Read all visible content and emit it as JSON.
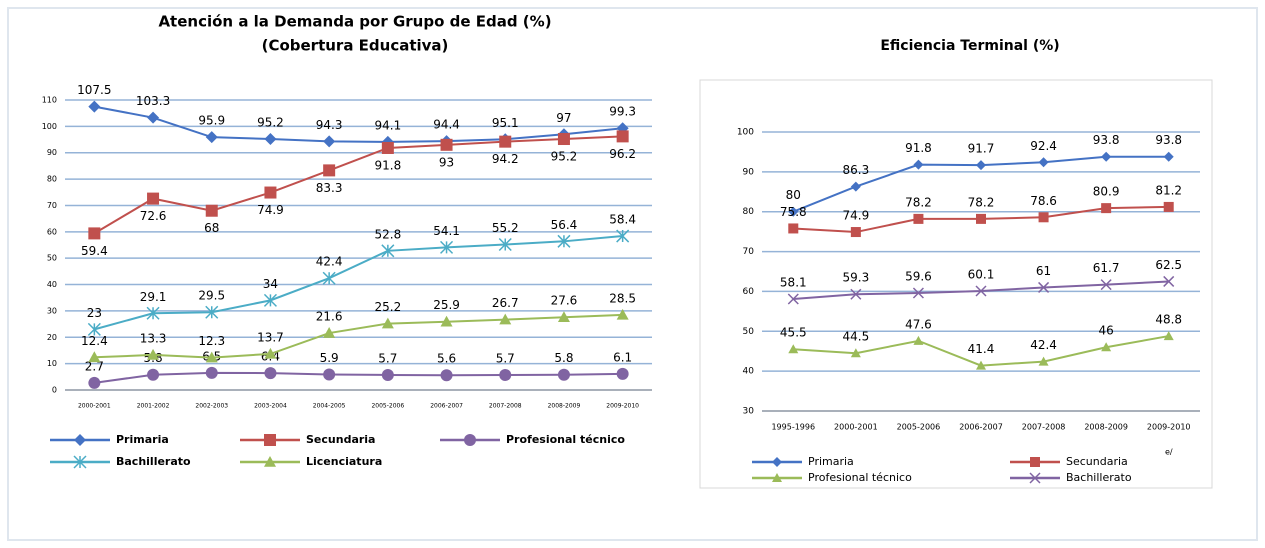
{
  "chart_data": [
    {
      "type": "line",
      "title": "Atención a la Demanda por Grupo de Edad (%)",
      "subtitle": "(Cobertura Educativa)",
      "categories": [
        "2000-2001",
        "2001-2002",
        "2002-2003",
        "2003-2004",
        "2004-2005",
        "2005-2006",
        "2006-2007",
        "2007-2008",
        "2008-2009",
        "2009-2010"
      ],
      "ylim": [
        0,
        110
      ],
      "yticks": [
        0,
        10,
        20,
        30,
        40,
        50,
        60,
        70,
        80,
        90,
        100,
        110
      ],
      "grid": true,
      "series": [
        {
          "name": "Primaria",
          "color": "#4472c4",
          "marker": "diamond",
          "values": [
            107.5,
            103.3,
            95.9,
            95.2,
            94.3,
            94.1,
            94.4,
            95.1,
            97,
            99.3
          ]
        },
        {
          "name": "Secundaria",
          "color": "#c0504d",
          "marker": "square",
          "values": [
            59.4,
            72.6,
            68,
            74.9,
            83.3,
            91.8,
            93,
            94.2,
            95.2,
            96.2
          ]
        },
        {
          "name": "Profesional técnico",
          "color": "#8064a2",
          "marker": "circle",
          "values": [
            2.7,
            5.8,
            6.5,
            6.4,
            5.9,
            5.7,
            5.6,
            5.7,
            5.8,
            6.1
          ]
        },
        {
          "name": "Bachillerato",
          "color": "#4bacc6",
          "marker": "star",
          "values": [
            23,
            29.1,
            29.5,
            34,
            42.4,
            52.8,
            54.1,
            55.2,
            56.4,
            58.4
          ]
        },
        {
          "name": "Licenciatura",
          "color": "#9bbb59",
          "marker": "triangle",
          "values": [
            12.4,
            13.3,
            12.3,
            13.7,
            21.6,
            25.2,
            25.9,
            26.7,
            27.6,
            28.5
          ]
        }
      ]
    },
    {
      "type": "line",
      "title": "Eficiencia Terminal (%)",
      "annotation": "e/",
      "categories": [
        "1995-1996",
        "2000-2001",
        "2005-2006",
        "2006-2007",
        "2007-2008",
        "2008-2009",
        "2009-2010"
      ],
      "ylim": [
        30,
        100
      ],
      "yticks": [
        30,
        40,
        50,
        60,
        70,
        80,
        90,
        100
      ],
      "grid": true,
      "series": [
        {
          "name": "Primaria",
          "color": "#4472c4",
          "marker": "diamond",
          "values": [
            80,
            86.3,
            91.8,
            91.7,
            92.4,
            93.8,
            93.8
          ]
        },
        {
          "name": "Secundaria",
          "color": "#c0504d",
          "marker": "square",
          "values": [
            75.8,
            74.9,
            78.2,
            78.2,
            78.6,
            80.9,
            81.2
          ]
        },
        {
          "name": "Profesional técnico",
          "color": "#9bbb59",
          "marker": "triangle",
          "values": [
            45.5,
            44.5,
            47.6,
            41.4,
            42.4,
            46,
            48.8
          ]
        },
        {
          "name": "Bachillerato",
          "color": "#8064a2",
          "marker": "x",
          "values": [
            58.1,
            59.3,
            59.6,
            60.1,
            61,
            61.7,
            62.5
          ]
        }
      ]
    }
  ]
}
